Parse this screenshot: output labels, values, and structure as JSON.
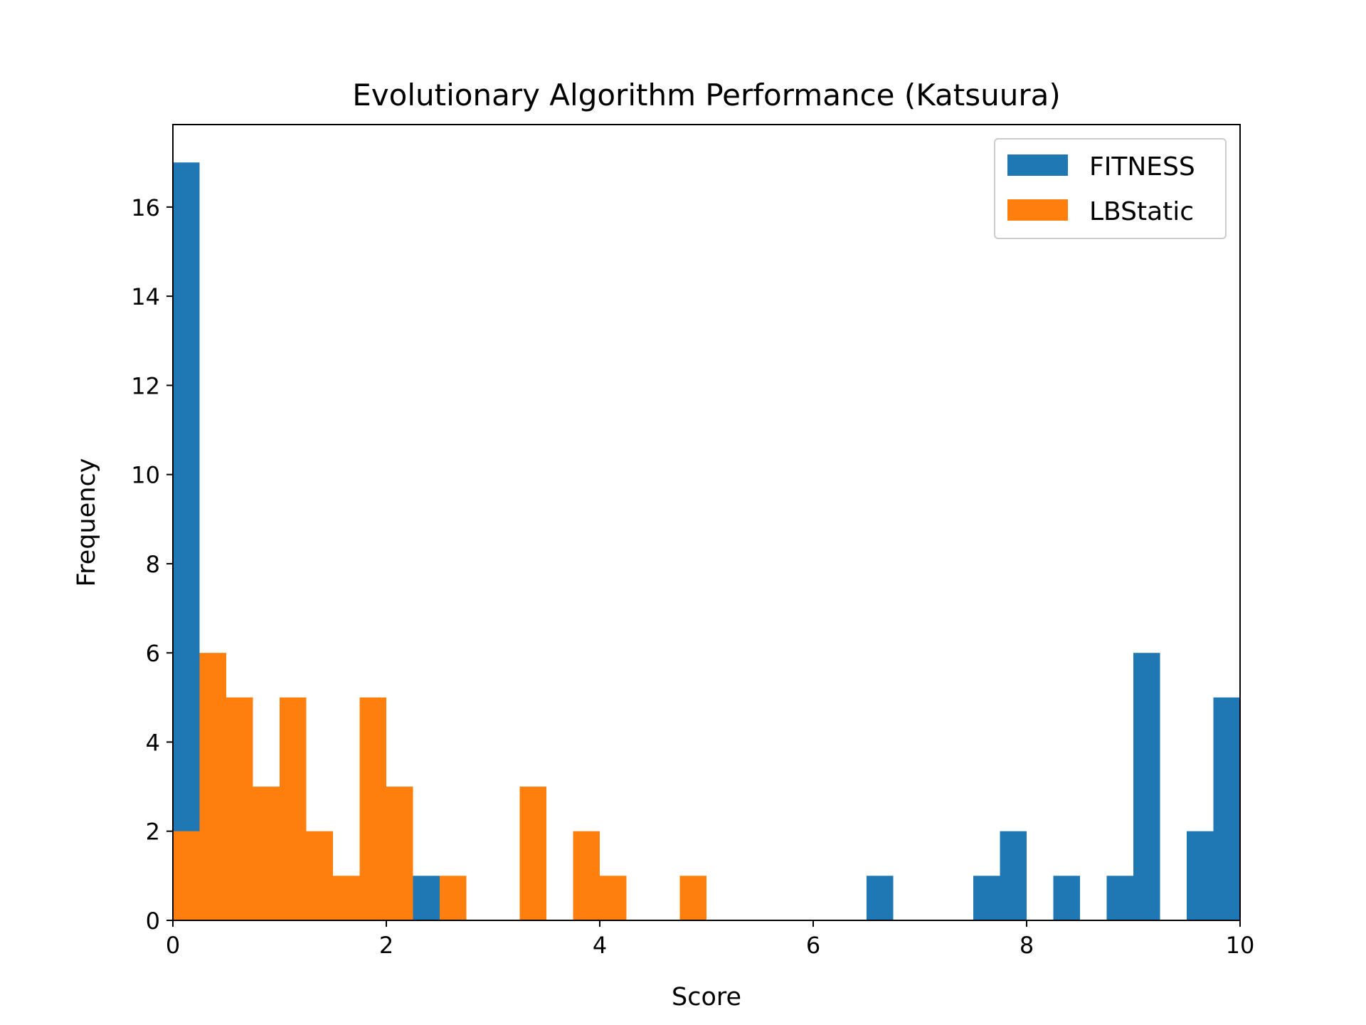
{
  "chart_data": {
    "type": "bar",
    "title": "Evolutionary Algorithm Performance (Katsuura)",
    "xlabel": "Score",
    "ylabel": "Frequency",
    "xlim": [
      0,
      10
    ],
    "ylim": [
      0,
      17.85
    ],
    "xticks": [
      0,
      2,
      4,
      6,
      8,
      10
    ],
    "yticks": [
      0,
      2,
      4,
      6,
      8,
      10,
      12,
      14,
      16
    ],
    "grid": false,
    "legend_position": "top-right",
    "bin_width": 0.25,
    "bin_start": 0,
    "series": [
      {
        "name": "FITNESS",
        "color": "#1f77b4",
        "values": [
          17,
          0,
          0,
          0,
          0,
          0,
          0,
          0,
          0,
          1,
          0,
          0,
          0,
          0,
          0,
          0,
          0,
          0,
          0,
          0,
          0,
          0,
          0,
          0,
          0,
          0,
          1,
          0,
          0,
          0,
          1,
          2,
          0,
          1,
          0,
          1,
          6,
          0,
          2,
          5
        ]
      },
      {
        "name": "LBStatic",
        "color": "#ff7f0e",
        "values": [
          2,
          6,
          5,
          3,
          5,
          2,
          1,
          5,
          3,
          0,
          1,
          0,
          0,
          3,
          0,
          2,
          1,
          0,
          0,
          1,
          0,
          0,
          0,
          0,
          0,
          0,
          0,
          0,
          0,
          0,
          0,
          0,
          0,
          0,
          0,
          0,
          0,
          0,
          0,
          0
        ]
      }
    ]
  }
}
